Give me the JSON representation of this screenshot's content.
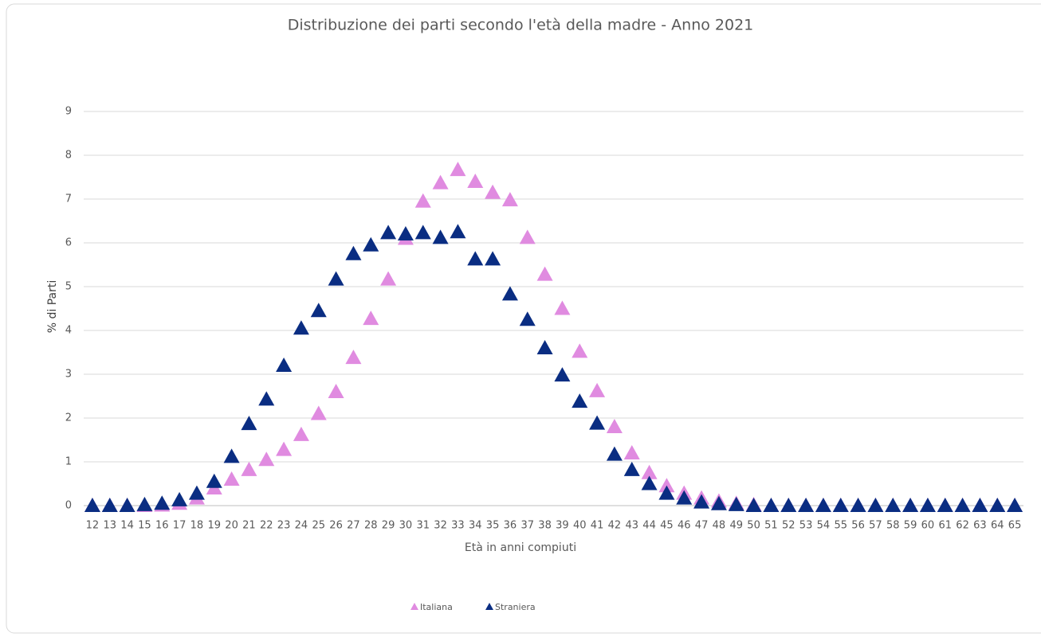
{
  "chart_data": {
    "type": "scatter",
    "title": "Distribuzione dei parti secondo l'età della madre - Anno 2021",
    "x_label": "Età in anni compiuti",
    "y_label": "% di Parti",
    "categories": [
      "12",
      "13",
      "14",
      "15",
      "16",
      "17",
      "18",
      "19",
      "20",
      "21",
      "22",
      "23",
      "24",
      "25",
      "26",
      "27",
      "28",
      "29",
      "30",
      "31",
      "32",
      "33",
      "34",
      "35",
      "36",
      "37",
      "38",
      "39",
      "40",
      "41",
      "42",
      "43",
      "44",
      "45",
      "46",
      "47",
      "48",
      "49",
      "50",
      "51",
      "52",
      "53",
      "54",
      "55",
      "56",
      "57",
      "58",
      "59",
      "60",
      "61",
      "62",
      "63",
      "64",
      "65"
    ],
    "series": [
      {
        "name": "Italiana",
        "color": "#e08be0",
        "values": [
          0,
          0,
          0,
          0,
          0.01,
          0.05,
          0.17,
          0.4,
          0.6,
          0.82,
          1.05,
          1.28,
          1.62,
          2.1,
          2.6,
          3.38,
          4.27,
          5.17,
          6.1,
          6.95,
          7.37,
          7.67,
          7.4,
          7.15,
          6.98,
          6.12,
          5.28,
          4.5,
          3.52,
          2.62,
          1.8,
          1.2,
          0.75,
          0.45,
          0.28,
          0.17,
          0.1,
          0.05,
          0.02,
          0,
          0,
          0,
          0,
          0,
          0,
          0,
          0,
          0,
          0,
          0,
          0,
          0,
          0,
          0
        ]
      },
      {
        "name": "Straniera",
        "color": "#0a2d82",
        "values": [
          0,
          0,
          0,
          0.02,
          0.05,
          0.13,
          0.28,
          0.55,
          1.12,
          1.87,
          2.43,
          3.2,
          4.05,
          4.45,
          5.17,
          5.75,
          5.95,
          6.23,
          6.2,
          6.23,
          6.12,
          6.25,
          5.63,
          5.63,
          4.83,
          4.25,
          3.6,
          2.98,
          2.38,
          1.88,
          1.17,
          0.82,
          0.5,
          0.28,
          0.17,
          0.08,
          0.04,
          0.02,
          0,
          0,
          0,
          0,
          0,
          0,
          0,
          0,
          0,
          0,
          0,
          0,
          0,
          0,
          0,
          0
        ]
      }
    ],
    "ylim": [
      0,
      9
    ],
    "yticks": [
      0,
      1,
      2,
      3,
      4,
      5,
      6,
      7,
      8,
      9
    ],
    "grid": true,
    "legend": "bottom"
  }
}
